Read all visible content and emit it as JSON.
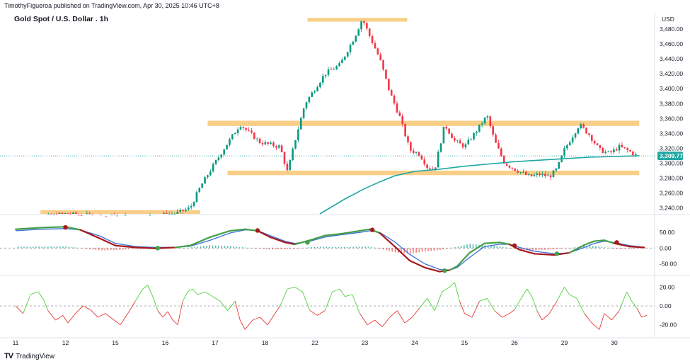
{
  "header": {
    "publisher": "TimothyFigueroa published on TradingView.com, Apr 30, 2025 10:46 UTC+8"
  },
  "footer": {
    "brand": "TradingView",
    "logo_glyph": "TV"
  },
  "chart_data": {
    "type": "candlestick",
    "title": "Gold Spot / U.S. Dollar . 1h",
    "currency": "USD",
    "last_price_label": "3,309.77",
    "x_tick_labels": [
      "11",
      "12",
      "15",
      "16",
      "17",
      "18",
      "22",
      "23",
      "24",
      "25",
      "26",
      "29",
      "30"
    ],
    "price_panel": {
      "ylim": [
        3232,
        3500
      ],
      "y_tick_labels": [
        "3,240.00",
        "3,260.00",
        "3,280.00",
        "3,300.00",
        "3,320.00",
        "3,340.00",
        "3,360.00",
        "3,380.00",
        "3,400.00",
        "3,420.00",
        "3,440.00",
        "3,460.00",
        "3,480.00"
      ],
      "y_ticks": [
        3240,
        3260,
        3280,
        3300,
        3320,
        3340,
        3360,
        3380,
        3400,
        3420,
        3440,
        3460,
        3480
      ],
      "last_price": 3309.77,
      "zones": [
        {
          "x_start": 0.5,
          "x_end": 3.7,
          "y_low": 3230,
          "y_high": 3237
        },
        {
          "x_start": 5.85,
          "x_end": 7.85,
          "y_low": 3490,
          "y_high": 3495
        },
        {
          "x_start": 3.85,
          "x_end": 12.5,
          "y_low": 3350,
          "y_high": 3357
        },
        {
          "x_start": 4.25,
          "x_end": 12.5,
          "y_low": 3284,
          "y_high": 3290
        }
      ],
      "close_path": [
        [
          0,
          3225
        ],
        [
          0.6,
          3228
        ],
        [
          1.0,
          3232
        ],
        [
          1.3,
          3230
        ],
        [
          1.8,
          3229
        ],
        [
          2.5,
          3228
        ],
        [
          3.2,
          3232
        ],
        [
          3.5,
          3240
        ],
        [
          3.7,
          3268
        ],
        [
          3.9,
          3290
        ],
        [
          4.2,
          3322
        ],
        [
          4.5,
          3352
        ],
        [
          4.7,
          3340
        ],
        [
          4.9,
          3328
        ],
        [
          5.1,
          3325
        ],
        [
          5.3,
          3322
        ],
        [
          5.45,
          3288
        ],
        [
          5.6,
          3330
        ],
        [
          5.8,
          3380
        ],
        [
          6.0,
          3400
        ],
        [
          6.2,
          3420
        ],
        [
          6.5,
          3432
        ],
        [
          6.8,
          3470
        ],
        [
          6.95,
          3494
        ],
        [
          7.1,
          3470
        ],
        [
          7.3,
          3440
        ],
        [
          7.5,
          3395
        ],
        [
          7.7,
          3362
        ],
        [
          7.9,
          3318
        ],
        [
          8.1,
          3312
        ],
        [
          8.25,
          3295
        ],
        [
          8.4,
          3292
        ],
        [
          8.6,
          3352
        ],
        [
          8.8,
          3330
        ],
        [
          9.0,
          3322
        ],
        [
          9.2,
          3340
        ],
        [
          9.45,
          3364
        ],
        [
          9.6,
          3330
        ],
        [
          9.8,
          3300
        ],
        [
          10.0,
          3292
        ],
        [
          10.3,
          3282
        ],
        [
          10.5,
          3285
        ],
        [
          10.7,
          3282
        ],
        [
          10.85,
          3292
        ],
        [
          11.0,
          3318
        ],
        [
          11.3,
          3352
        ],
        [
          11.5,
          3338
        ],
        [
          11.7,
          3318
        ],
        [
          11.9,
          3313
        ],
        [
          12.1,
          3322
        ],
        [
          12.3,
          3316
        ],
        [
          12.45,
          3310
        ]
      ],
      "ema_path": [
        [
          6.1,
          3232
        ],
        [
          6.6,
          3252
        ],
        [
          7.0,
          3266
        ],
        [
          7.3,
          3275
        ],
        [
          7.6,
          3283
        ],
        [
          8.0,
          3289
        ],
        [
          8.5,
          3292
        ],
        [
          9.0,
          3296
        ],
        [
          9.5,
          3299
        ],
        [
          10.0,
          3302
        ],
        [
          10.5,
          3304
        ],
        [
          11.0,
          3306
        ],
        [
          11.5,
          3308
        ],
        [
          12.0,
          3309
        ],
        [
          12.5,
          3310
        ]
      ]
    },
    "macd_panel": {
      "ylim": [
        -85,
        100
      ],
      "y_tick_labels": [
        "50.00",
        "0.00",
        "-50.00"
      ],
      "y_ticks": [
        50,
        0,
        -50
      ],
      "fast_line": [
        [
          0,
          60
        ],
        [
          0.5,
          65
        ],
        [
          1.0,
          68
        ],
        [
          1.3,
          58
        ],
        [
          1.7,
          30
        ],
        [
          2.0,
          8
        ],
        [
          2.4,
          2
        ],
        [
          2.8,
          -1
        ],
        [
          3.2,
          2
        ],
        [
          3.5,
          8
        ],
        [
          3.9,
          35
        ],
        [
          4.3,
          55
        ],
        [
          4.6,
          60
        ],
        [
          4.85,
          55
        ],
        [
          5.1,
          35
        ],
        [
          5.4,
          18
        ],
        [
          5.6,
          12
        ],
        [
          5.9,
          25
        ],
        [
          6.2,
          40
        ],
        [
          6.5,
          45
        ],
        [
          6.9,
          55
        ],
        [
          7.1,
          60
        ],
        [
          7.3,
          48
        ],
        [
          7.6,
          5
        ],
        [
          7.9,
          -40
        ],
        [
          8.2,
          -62
        ],
        [
          8.5,
          -75
        ],
        [
          8.7,
          -70
        ],
        [
          8.85,
          -58
        ],
        [
          9.1,
          -15
        ],
        [
          9.4,
          15
        ],
        [
          9.7,
          18
        ],
        [
          9.9,
          12
        ],
        [
          10.1,
          -5
        ],
        [
          10.4,
          -18
        ],
        [
          10.8,
          -22
        ],
        [
          11.1,
          -15
        ],
        [
          11.4,
          10
        ],
        [
          11.6,
          22
        ],
        [
          11.8,
          25
        ],
        [
          12.0,
          15
        ],
        [
          12.3,
          5
        ],
        [
          12.6,
          2
        ]
      ],
      "slow_line": [
        [
          0,
          55
        ],
        [
          0.5,
          60
        ],
        [
          1.0,
          62
        ],
        [
          1.3,
          58
        ],
        [
          1.7,
          38
        ],
        [
          2.0,
          15
        ],
        [
          2.4,
          5
        ],
        [
          2.8,
          2
        ],
        [
          3.2,
          3
        ],
        [
          3.5,
          6
        ],
        [
          3.9,
          25
        ],
        [
          4.3,
          48
        ],
        [
          4.6,
          58
        ],
        [
          4.85,
          56
        ],
        [
          5.1,
          40
        ],
        [
          5.4,
          22
        ],
        [
          5.6,
          15
        ],
        [
          5.9,
          22
        ],
        [
          6.2,
          35
        ],
        [
          6.5,
          42
        ],
        [
          6.9,
          50
        ],
        [
          7.1,
          55
        ],
        [
          7.3,
          50
        ],
        [
          7.6,
          20
        ],
        [
          7.9,
          -20
        ],
        [
          8.2,
          -50
        ],
        [
          8.5,
          -68
        ],
        [
          8.7,
          -70
        ],
        [
          8.85,
          -62
        ],
        [
          9.1,
          -30
        ],
        [
          9.4,
          5
        ],
        [
          9.7,
          12
        ],
        [
          9.9,
          12
        ],
        [
          10.1,
          2
        ],
        [
          10.4,
          -10
        ],
        [
          10.8,
          -18
        ],
        [
          11.1,
          -15
        ],
        [
          11.4,
          2
        ],
        [
          11.6,
          15
        ],
        [
          11.8,
          22
        ],
        [
          12.0,
          18
        ],
        [
          12.3,
          8
        ],
        [
          12.6,
          3
        ]
      ],
      "cross_markers": [
        {
          "x": 1.0,
          "y": 66,
          "color": "#a8191b"
        },
        {
          "x": 2.85,
          "y": 0,
          "color": "#43a047"
        },
        {
          "x": 4.85,
          "y": 56,
          "color": "#a8191b"
        },
        {
          "x": 5.85,
          "y": 18,
          "color": "#43a047"
        },
        {
          "x": 7.15,
          "y": 58,
          "color": "#a8191b"
        },
        {
          "x": 8.6,
          "y": -72,
          "color": "#43a047"
        },
        {
          "x": 10.0,
          "y": 8,
          "color": "#a8191b"
        },
        {
          "x": 10.85,
          "y": -18,
          "color": "#43a047"
        },
        {
          "x": 12.05,
          "y": 18,
          "color": "#a8191b"
        }
      ]
    },
    "oscillator_panel": {
      "ylim": [
        -30,
        30
      ],
      "y_tick_labels": [
        "20.00",
        "0.00",
        "-20.00"
      ],
      "y_ticks": [
        20,
        0,
        -20
      ],
      "line": [
        [
          0,
          0
        ],
        [
          0.15,
          -8
        ],
        [
          0.3,
          12
        ],
        [
          0.45,
          15
        ],
        [
          0.55,
          8
        ],
        [
          0.65,
          -5
        ],
        [
          0.8,
          -15
        ],
        [
          0.95,
          -10
        ],
        [
          1.05,
          -18
        ],
        [
          1.2,
          -8
        ],
        [
          1.35,
          0
        ],
        [
          1.5,
          -4
        ],
        [
          1.65,
          -12
        ],
        [
          1.8,
          -8
        ],
        [
          1.95,
          -14
        ],
        [
          2.1,
          -20
        ],
        [
          2.25,
          -8
        ],
        [
          2.4,
          5
        ],
        [
          2.55,
          18
        ],
        [
          2.65,
          22
        ],
        [
          2.75,
          10
        ],
        [
          2.85,
          -5
        ],
        [
          2.95,
          -12
        ],
        [
          3.05,
          -6
        ],
        [
          3.15,
          -15
        ],
        [
          3.25,
          -20
        ],
        [
          3.35,
          5
        ],
        [
          3.45,
          15
        ],
        [
          3.55,
          18
        ],
        [
          3.65,
          12
        ],
        [
          3.8,
          15
        ],
        [
          3.95,
          10
        ],
        [
          4.1,
          5
        ],
        [
          4.25,
          -5
        ],
        [
          4.4,
          5
        ],
        [
          4.5,
          -15
        ],
        [
          4.6,
          -25
        ],
        [
          4.75,
          -15
        ],
        [
          4.9,
          -12
        ],
        [
          5.05,
          -20
        ],
        [
          5.15,
          -12
        ],
        [
          5.3,
          0
        ],
        [
          5.45,
          18
        ],
        [
          5.6,
          20
        ],
        [
          5.75,
          15
        ],
        [
          5.9,
          -5
        ],
        [
          6.05,
          -10
        ],
        [
          6.2,
          -5
        ],
        [
          6.35,
          15
        ],
        [
          6.5,
          18
        ],
        [
          6.6,
          10
        ],
        [
          6.75,
          12
        ],
        [
          6.9,
          -8
        ],
        [
          7.05,
          -20
        ],
        [
          7.2,
          -15
        ],
        [
          7.35,
          -22
        ],
        [
          7.5,
          -12
        ],
        [
          7.65,
          -5
        ],
        [
          7.8,
          -18
        ],
        [
          7.95,
          -12
        ],
        [
          8.1,
          -2
        ],
        [
          8.25,
          8
        ],
        [
          8.4,
          -5
        ],
        [
          8.55,
          15
        ],
        [
          8.7,
          20
        ],
        [
          8.8,
          25
        ],
        [
          8.9,
          5
        ],
        [
          9.0,
          -8
        ],
        [
          9.15,
          -12
        ],
        [
          9.3,
          5
        ],
        [
          9.45,
          8
        ],
        [
          9.6,
          -5
        ],
        [
          9.75,
          -12
        ],
        [
          9.9,
          -8
        ],
        [
          10.0,
          -4
        ],
        [
          10.1,
          5
        ],
        [
          10.25,
          18
        ],
        [
          10.35,
          10
        ],
        [
          10.45,
          -5
        ],
        [
          10.55,
          -15
        ],
        [
          10.7,
          -8
        ],
        [
          10.85,
          5
        ],
        [
          11.0,
          20
        ],
        [
          11.1,
          12
        ],
        [
          11.25,
          8
        ],
        [
          11.4,
          -8
        ],
        [
          11.55,
          -18
        ],
        [
          11.7,
          -25
        ],
        [
          11.8,
          -8
        ],
        [
          11.95,
          -15
        ],
        [
          12.1,
          -5
        ],
        [
          12.25,
          15
        ],
        [
          12.35,
          5
        ],
        [
          12.45,
          -2
        ],
        [
          12.55,
          -12
        ],
        [
          12.65,
          -10
        ]
      ]
    }
  }
}
